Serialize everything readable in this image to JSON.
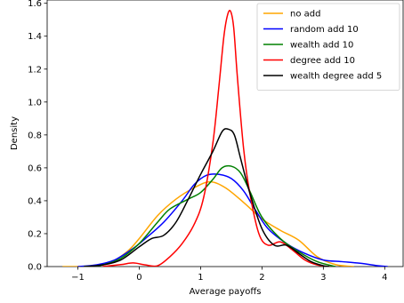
{
  "chart_data": {
    "type": "line",
    "title": "",
    "xlabel": "Average payoffs",
    "ylabel": "Density",
    "xlim": [
      -1.5,
      4.3
    ],
    "ylim": [
      0.0,
      1.62
    ],
    "xticks": [
      -1,
      0,
      1,
      2,
      3,
      4
    ],
    "yticks": [
      0.0,
      0.2,
      0.4,
      0.6,
      0.8,
      1.0,
      1.2,
      1.4,
      1.6
    ],
    "xtick_labels": [
      "−1",
      "0",
      "1",
      "2",
      "3",
      "4"
    ],
    "ytick_labels": [
      "0.0",
      "0.2",
      "0.4",
      "0.6",
      "0.8",
      "1.0",
      "1.2",
      "1.4",
      "1.6"
    ],
    "grid": false,
    "legend_position": "top-right",
    "series": [
      {
        "name": "no add",
        "color": "#ffa500",
        "x": [
          -1.25,
          -0.8,
          -0.5,
          -0.2,
          0.0,
          0.3,
          0.6,
          0.9,
          1.15,
          1.4,
          1.7,
          2.0,
          2.3,
          2.6,
          2.9,
          3.2,
          3.5
        ],
        "y": [
          0.0,
          0.003,
          0.02,
          0.09,
          0.17,
          0.31,
          0.41,
          0.48,
          0.515,
          0.48,
          0.39,
          0.29,
          0.22,
          0.16,
          0.06,
          0.012,
          0.0
        ]
      },
      {
        "name": "random add 10",
        "color": "#0000ff",
        "x": [
          -1.0,
          -0.7,
          -0.4,
          -0.1,
          0.1,
          0.4,
          0.7,
          0.9,
          1.1,
          1.3,
          1.5,
          1.7,
          1.9,
          2.1,
          2.4,
          2.7,
          3.0,
          3.3,
          3.6,
          3.9,
          4.05
        ],
        "y": [
          0.0,
          0.01,
          0.04,
          0.11,
          0.17,
          0.27,
          0.4,
          0.5,
          0.555,
          0.56,
          0.535,
          0.46,
          0.34,
          0.23,
          0.14,
          0.08,
          0.04,
          0.03,
          0.02,
          0.005,
          0.0
        ]
      },
      {
        "name": "wealth add 10",
        "color": "#008000",
        "x": [
          -0.9,
          -0.6,
          -0.3,
          0.0,
          0.3,
          0.5,
          0.8,
          1.0,
          1.2,
          1.35,
          1.5,
          1.65,
          1.8,
          2.0,
          2.3,
          2.6,
          2.9,
          3.2
        ],
        "y": [
          0.0,
          0.01,
          0.05,
          0.14,
          0.27,
          0.35,
          0.41,
          0.45,
          0.53,
          0.6,
          0.61,
          0.57,
          0.46,
          0.3,
          0.17,
          0.09,
          0.03,
          0.0
        ]
      },
      {
        "name": "degree add 10",
        "color": "#ff0000",
        "x": [
          -0.6,
          -0.3,
          -0.1,
          0.1,
          0.3,
          0.5,
          0.7,
          0.9,
          1.05,
          1.2,
          1.3,
          1.38,
          1.44,
          1.49,
          1.54,
          1.6,
          1.7,
          1.8,
          1.95,
          2.1,
          2.3,
          2.5,
          2.7,
          2.9,
          3.1
        ],
        "y": [
          0.0,
          0.012,
          0.022,
          0.01,
          0.005,
          0.06,
          0.14,
          0.26,
          0.42,
          0.75,
          1.1,
          1.4,
          1.53,
          1.55,
          1.45,
          1.15,
          0.72,
          0.45,
          0.2,
          0.13,
          0.15,
          0.1,
          0.04,
          0.01,
          0.0
        ]
      },
      {
        "name": "wealth degree add 5",
        "color": "#000000",
        "x": [
          -0.9,
          -0.6,
          -0.3,
          0.0,
          0.2,
          0.4,
          0.6,
          0.8,
          1.0,
          1.2,
          1.35,
          1.45,
          1.55,
          1.65,
          1.8,
          2.0,
          2.2,
          2.4,
          2.6,
          2.8,
          3.0,
          3.1
        ],
        "y": [
          0.0,
          0.01,
          0.04,
          0.12,
          0.17,
          0.19,
          0.27,
          0.41,
          0.56,
          0.7,
          0.82,
          0.835,
          0.8,
          0.66,
          0.45,
          0.23,
          0.13,
          0.13,
          0.08,
          0.03,
          0.005,
          0.0
        ]
      }
    ]
  }
}
